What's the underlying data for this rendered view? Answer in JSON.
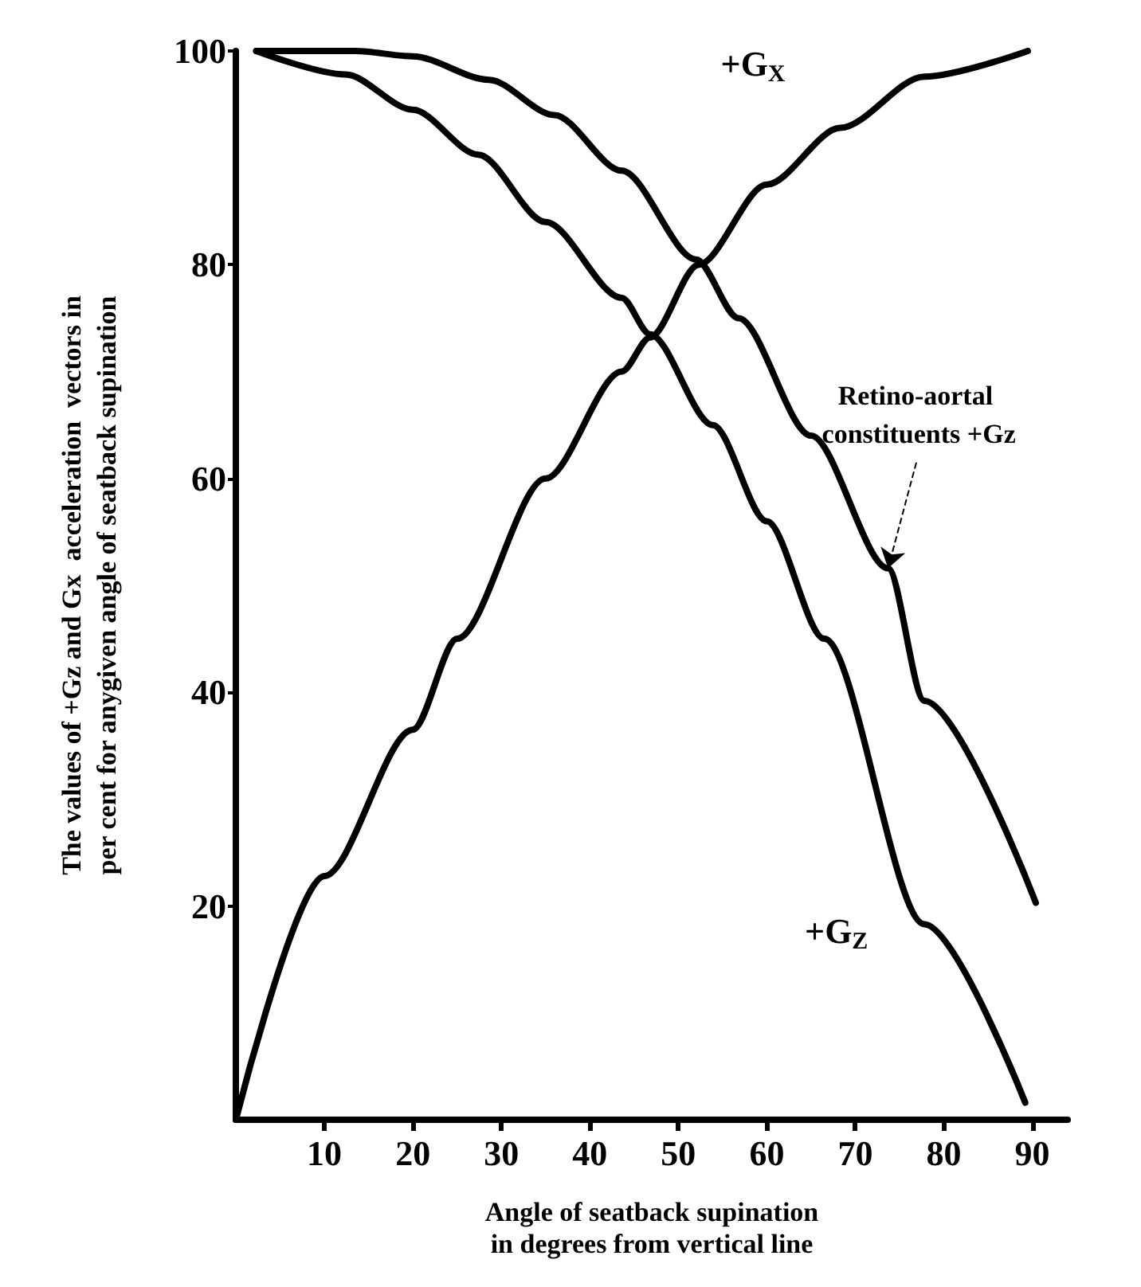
{
  "chart_data": {
    "type": "line",
    "xlabel": "Angle of seatback supination\nin degrees from vertical line",
    "ylabel": "The values of +Gz and Gx  acceleration  vectors in\nper cent for anygiven angle of seatback supination",
    "xlim": [
      0,
      94
    ],
    "ylim": [
      0,
      100
    ],
    "xticks": [
      10,
      20,
      30,
      40,
      50,
      60,
      70,
      80,
      90
    ],
    "yticks": [
      20,
      40,
      60,
      80,
      100
    ],
    "marker": "none",
    "line_style": "solid",
    "series": [
      {
        "name": "+G$_{X}$",
        "color": "#000000",
        "x": [
          0,
          10,
          20,
          25,
          35,
          43.6,
          46.8,
          52.3,
          60,
          68.3,
          77.8,
          89.5
        ],
        "values": [
          0,
          22.8,
          36.5,
          45,
          60,
          70,
          73.2,
          80,
          87.5,
          92.8,
          97.6,
          100
        ]
      },
      {
        "name": "+G$_{Z}$",
        "color": "#000000",
        "x": [
          2.3,
          12.4,
          20,
          27.4,
          35,
          43.6,
          46.8,
          53.9,
          60,
          66.5,
          77.8,
          89.2
        ],
        "values": [
          100,
          97.8,
          94.5,
          90.3,
          84,
          76.9,
          73.5,
          65,
          56,
          45,
          18.3,
          1.6
        ]
      },
      {
        "color": "#000000",
        "x": [
          2.3,
          13.5,
          20,
          28.6,
          36,
          43.6,
          52,
          56.8,
          65,
          73.7,
          77.8,
          90.4
        ],
        "values": [
          100,
          100,
          99.5,
          97.3,
          94,
          88.8,
          80.5,
          75,
          64,
          51.6,
          39.2,
          20.3
        ]
      }
    ],
    "annotations": [
      {
        "text": "Retino-aortal constituents +Gz",
        "x": 73.7,
        "y": 51.6
      }
    ]
  }
}
